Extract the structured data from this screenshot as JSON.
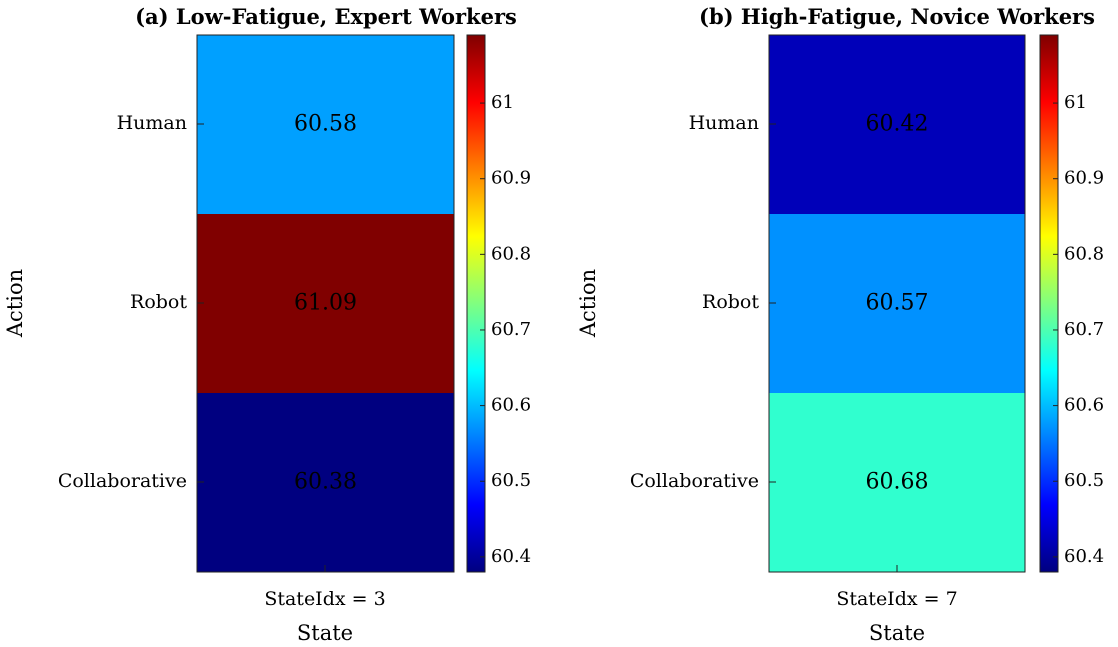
{
  "chart_data": [
    {
      "type": "heatmap",
      "title": "(a) Low-Fatigue, Expert Workers",
      "xlabel": "State",
      "ylabel": "Action",
      "x_categories": [
        "StateIdx = 3"
      ],
      "y_categories": [
        "Human",
        "Robot",
        "Collaborative"
      ],
      "values": [
        [
          60.58
        ],
        [
          61.09
        ],
        [
          60.38
        ]
      ],
      "value_labels": [
        "60.58",
        "61.09",
        "60.38"
      ],
      "colormap": "jet",
      "clim": [
        60.38,
        61.09
      ],
      "colorbar_ticks": [
        "60.4",
        "60.5",
        "60.6",
        "60.7",
        "60.8",
        "60.9",
        "61"
      ],
      "value_label_color": "#ffffff"
    },
    {
      "type": "heatmap",
      "title": "(b) High-Fatigue, Novice Workers",
      "xlabel": "State",
      "ylabel": "Action",
      "x_categories": [
        "StateIdx = 7"
      ],
      "y_categories": [
        "Human",
        "Robot",
        "Collaborative"
      ],
      "values": [
        [
          60.42
        ],
        [
          60.57
        ],
        [
          60.68
        ]
      ],
      "value_labels": [
        "60.42",
        "60.57",
        "60.68"
      ],
      "colormap": "jet",
      "clim": [
        60.38,
        61.09
      ],
      "colorbar_ticks": [
        "60.4",
        "60.5",
        "60.6",
        "60.7",
        "60.8",
        "60.9",
        "61"
      ],
      "value_label_colors": [
        "#ffffff",
        "#ffffff",
        "#000000"
      ]
    }
  ]
}
